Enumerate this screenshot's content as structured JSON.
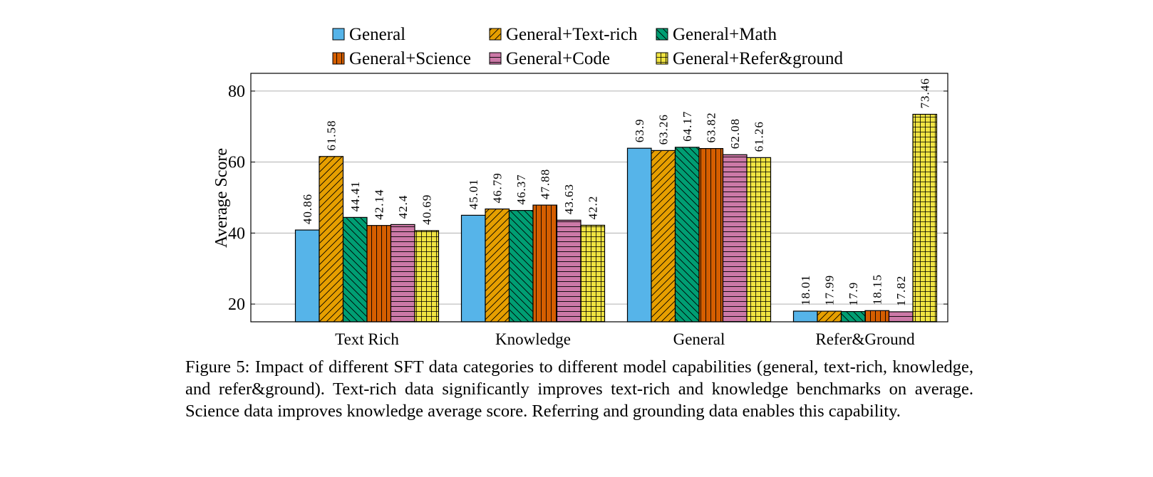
{
  "chart_data": {
    "type": "bar",
    "categories": [
      "Text Rich",
      "Knowledge",
      "General",
      "Refer&Ground"
    ],
    "ylabel": "Average Score",
    "xlabel": "",
    "ylim": [
      15,
      85
    ],
    "yticks": [
      20,
      40,
      60,
      80
    ],
    "grid": true,
    "legend_position": "top",
    "series": [
      {
        "name": "General",
        "color": "#56b4e9",
        "pattern": "none",
        "values": [
          40.86,
          45.01,
          63.9,
          18.01
        ]
      },
      {
        "name": "General+Text-rich",
        "color": "#e69f00",
        "pattern": "diagonal-up",
        "values": [
          61.58,
          46.79,
          63.26,
          17.99
        ]
      },
      {
        "name": "General+Math",
        "color": "#009e73",
        "pattern": "diagonal-down",
        "values": [
          44.41,
          46.37,
          64.17,
          17.9
        ]
      },
      {
        "name": "General+Science",
        "color": "#d55e00",
        "pattern": "vertical",
        "values": [
          42.14,
          47.88,
          63.82,
          18.15
        ]
      },
      {
        "name": "General+Code",
        "color": "#cc79a7",
        "pattern": "horizontal",
        "values": [
          42.4,
          43.63,
          62.08,
          17.82
        ]
      },
      {
        "name": "General+Refer&ground",
        "color": "#f0e442",
        "pattern": "grid",
        "values": [
          40.69,
          42.2,
          61.26,
          73.46
        ]
      }
    ]
  },
  "caption": "Figure 5: Impact of different SFT data categories to different model capabilities (general, text-rich, knowledge, and refer&ground). Text-rich data significantly improves text-rich and knowledge benchmarks on average. Science data improves knowledge average score. Referring and grounding data enables this capability."
}
